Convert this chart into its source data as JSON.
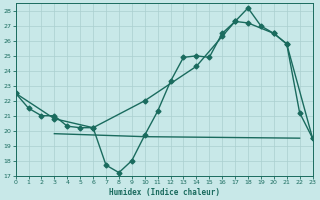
{
  "line1_x": [
    0,
    1,
    2,
    3,
    4,
    5,
    6,
    7,
    8,
    9,
    10,
    11,
    12,
    13,
    14,
    15,
    16,
    17,
    18,
    19,
    20,
    21,
    22,
    23
  ],
  "line1_y": [
    22.5,
    21.5,
    21.0,
    21.0,
    20.3,
    20.2,
    20.2,
    17.7,
    17.2,
    18.0,
    19.7,
    21.3,
    23.3,
    24.9,
    25.0,
    24.9,
    26.5,
    27.3,
    28.2,
    27.0,
    26.5,
    25.8,
    21.2,
    19.5
  ],
  "line2_x": [
    0,
    3,
    6,
    10,
    14,
    16,
    17,
    18,
    20,
    21,
    23
  ],
  "line2_y": [
    22.5,
    20.8,
    20.2,
    22.0,
    24.3,
    26.3,
    27.3,
    27.2,
    26.5,
    25.8,
    19.5
  ],
  "line3_x": [
    3,
    10,
    22
  ],
  "line3_y": [
    19.8,
    19.6,
    19.5
  ],
  "color": "#1a6b5e",
  "bg_color": "#c8e8e8",
  "grid_color": "#aacfcf",
  "xlabel": "Humidex (Indice chaleur)",
  "xlim": [
    0,
    23
  ],
  "ylim": [
    17,
    28.5
  ],
  "yticks": [
    17,
    18,
    19,
    20,
    21,
    22,
    23,
    24,
    25,
    26,
    27,
    28
  ],
  "xticks": [
    0,
    1,
    2,
    3,
    4,
    5,
    6,
    7,
    8,
    9,
    10,
    11,
    12,
    13,
    14,
    15,
    16,
    17,
    18,
    19,
    20,
    21,
    22,
    23
  ],
  "markersize": 2.5,
  "linewidth": 1.0
}
